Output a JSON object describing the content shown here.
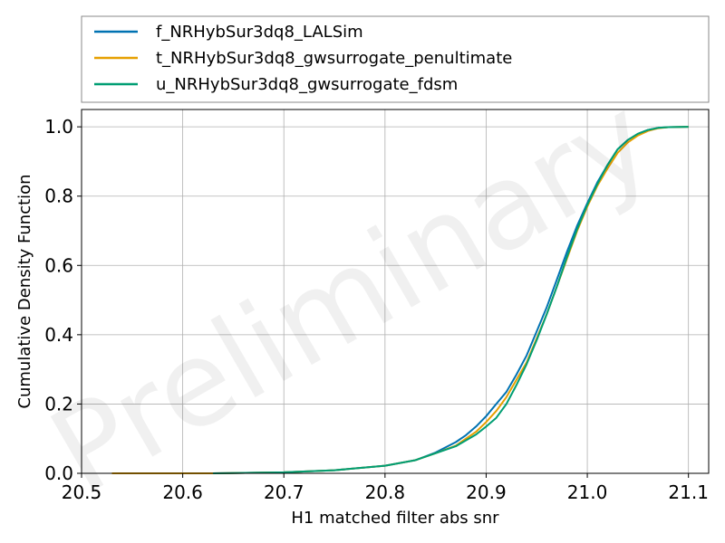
{
  "chart_data": {
    "type": "line",
    "title": "",
    "xlabel": "H1 matched filter abs snr",
    "ylabel": "Cumulative Density Function",
    "watermark": "Preliminary",
    "xlim": [
      20.5,
      21.12
    ],
    "ylim": [
      0.0,
      1.05
    ],
    "xticks": [
      "20.5",
      "20.6",
      "20.7",
      "20.8",
      "20.9",
      "21.0",
      "21.1"
    ],
    "yticks": [
      "0.0",
      "0.2",
      "0.4",
      "0.6",
      "0.8",
      "1.0"
    ],
    "grid": true,
    "legend_position": "above plot",
    "series": [
      {
        "name": "f_NRHybSur3dq8_LALSim",
        "color": "#0072B2",
        "x": [
          20.63,
          20.7,
          20.75,
          20.8,
          20.83,
          20.85,
          20.87,
          20.88,
          20.89,
          20.9,
          20.91,
          20.92,
          20.93,
          20.94,
          20.95,
          20.96,
          20.97,
          20.98,
          20.99,
          21.0,
          21.01,
          21.02,
          21.03,
          21.04,
          21.05,
          21.06,
          21.07,
          21.08,
          21.1
        ],
        "y": [
          0.0,
          0.003,
          0.009,
          0.022,
          0.038,
          0.06,
          0.09,
          0.11,
          0.135,
          0.165,
          0.2,
          0.235,
          0.285,
          0.34,
          0.41,
          0.48,
          0.56,
          0.64,
          0.715,
          0.78,
          0.84,
          0.89,
          0.935,
          0.962,
          0.98,
          0.991,
          0.997,
          0.999,
          1.0
        ]
      },
      {
        "name": "t_NRHybSur3dq8_gwsurrogate_penultimate",
        "color": "#E69F00",
        "x": [
          20.53,
          20.63,
          20.7,
          20.75,
          20.8,
          20.83,
          20.85,
          20.87,
          20.88,
          20.89,
          20.9,
          20.91,
          20.92,
          20.93,
          20.94,
          20.95,
          20.96,
          20.97,
          20.98,
          20.99,
          21.0,
          21.01,
          21.02,
          21.03,
          21.04,
          21.05,
          21.06,
          21.07,
          21.08,
          21.1
        ],
        "y": [
          0.0,
          0.0,
          0.003,
          0.009,
          0.022,
          0.038,
          0.058,
          0.08,
          0.1,
          0.12,
          0.148,
          0.18,
          0.22,
          0.27,
          0.32,
          0.39,
          0.46,
          0.54,
          0.62,
          0.7,
          0.77,
          0.83,
          0.88,
          0.925,
          0.955,
          0.975,
          0.988,
          0.996,
          0.999,
          1.0
        ]
      },
      {
        "name": "u_NRHybSur3dq8_gwsurrogate_fdsm",
        "color": "#009E73",
        "x": [
          20.63,
          20.7,
          20.75,
          20.8,
          20.83,
          20.85,
          20.87,
          20.88,
          20.89,
          20.9,
          20.91,
          20.92,
          20.93,
          20.94,
          20.95,
          20.96,
          20.97,
          20.98,
          20.99,
          21.0,
          21.01,
          21.02,
          21.03,
          21.04,
          21.05,
          21.06,
          21.07,
          21.08,
          21.1
        ],
        "y": [
          0.0,
          0.003,
          0.009,
          0.022,
          0.038,
          0.058,
          0.078,
          0.095,
          0.112,
          0.135,
          0.16,
          0.2,
          0.255,
          0.315,
          0.385,
          0.46,
          0.54,
          0.625,
          0.705,
          0.775,
          0.835,
          0.89,
          0.935,
          0.962,
          0.98,
          0.991,
          0.997,
          0.999,
          1.0
        ]
      }
    ]
  }
}
